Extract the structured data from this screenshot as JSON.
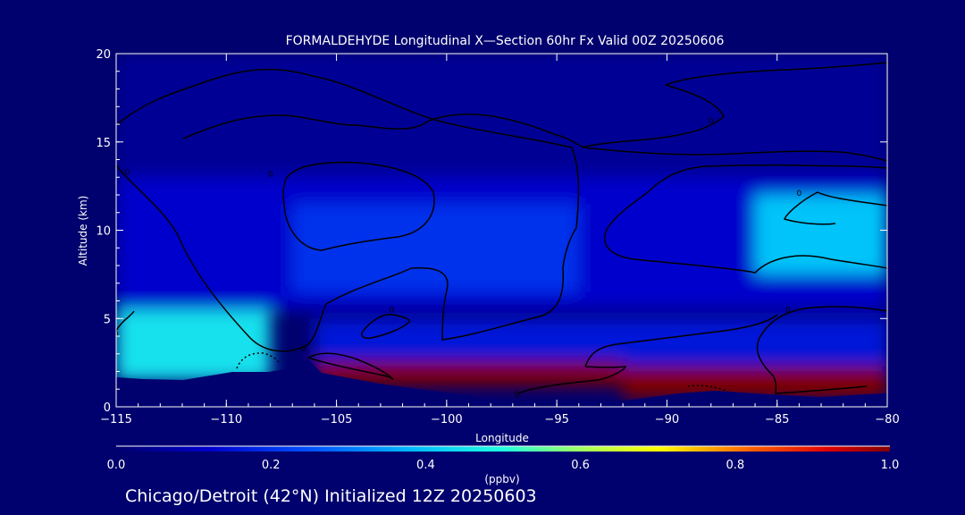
{
  "chart_data": {
    "type": "heatmap",
    "title": "FORMALDEHYDE Longitudinal X—Section 60hr  Fx Valid 00Z 20250606",
    "xlabel": "Longitude",
    "ylabel": "Altitude (km)",
    "xlim": [
      -115,
      -80
    ],
    "ylim": [
      0,
      20
    ],
    "x_ticks": [
      -115,
      -110,
      -105,
      -100,
      -95,
      -90,
      -85,
      -80
    ],
    "x_tick_labels": [
      "−115",
      "−110",
      "−105",
      "−100",
      "−95",
      "−90",
      "−85",
      "−80"
    ],
    "y_ticks": [
      0,
      5,
      10,
      15,
      20
    ],
    "y_tick_labels": [
      "0",
      "5",
      "10",
      "15",
      "20"
    ],
    "colorbar": {
      "label": "(ppbv)",
      "range": [
        0,
        1
      ],
      "ticks": [
        0.0,
        0.2,
        0.4,
        0.6,
        0.8,
        1.0
      ],
      "tick_labels": [
        "0.0",
        "0.2",
        "0.4",
        "0.6",
        "0.8",
        "1.0"
      ]
    },
    "contour_labels": [
      {
        "text": "0",
        "lon": -114.5,
        "alt": 13.3
      },
      {
        "text": "0",
        "lon": -108,
        "alt": 13.2
      },
      {
        "text": "0",
        "lon": -88,
        "alt": 16.2
      },
      {
        "text": "0",
        "lon": -84,
        "alt": 12.1
      },
      {
        "text": "0",
        "lon": -115,
        "alt": 4.1
      },
      {
        "text": "0",
        "lon": -106.5,
        "alt": 3.3
      },
      {
        "text": "0",
        "lon": -102.5,
        "alt": 5.5
      },
      {
        "text": "0",
        "lon": -84.5,
        "alt": 5.5
      },
      {
        "text": "0",
        "lon": -96.8,
        "alt": 0.7
      }
    ],
    "fields": [
      {
        "lon0": -115,
        "lon1": -80,
        "alt0": 13,
        "alt1": 20,
        "value": 0.05
      },
      {
        "lon0": -115,
        "lon1": -80,
        "alt0": 5.5,
        "alt1": 13,
        "value": 0.12
      },
      {
        "lon0": -107,
        "lon1": -94,
        "alt0": 6.5,
        "alt1": 11.5,
        "value": 0.2
      },
      {
        "lon0": -86,
        "lon1": -80,
        "alt0": 7.5,
        "alt1": 12,
        "value": 0.4
      },
      {
        "lon0": -115,
        "lon1": -108,
        "alt0": 1.5,
        "alt1": 5.5,
        "value": 0.45
      },
      {
        "lon0": -106,
        "lon1": -80,
        "alt0": 2,
        "alt1": 5,
        "value": 0.15
      },
      {
        "lon0": -106,
        "lon1": -92,
        "alt0": 1.2,
        "alt1": 2.6,
        "value": 1.0
      },
      {
        "lon0": -92,
        "lon1": -80,
        "alt0": 0.5,
        "alt1": 2.3,
        "value": 1.0
      }
    ]
  },
  "footer": {
    "run_info": "Chicago/Detroit (42°N) Initialized 12Z 20250603"
  }
}
